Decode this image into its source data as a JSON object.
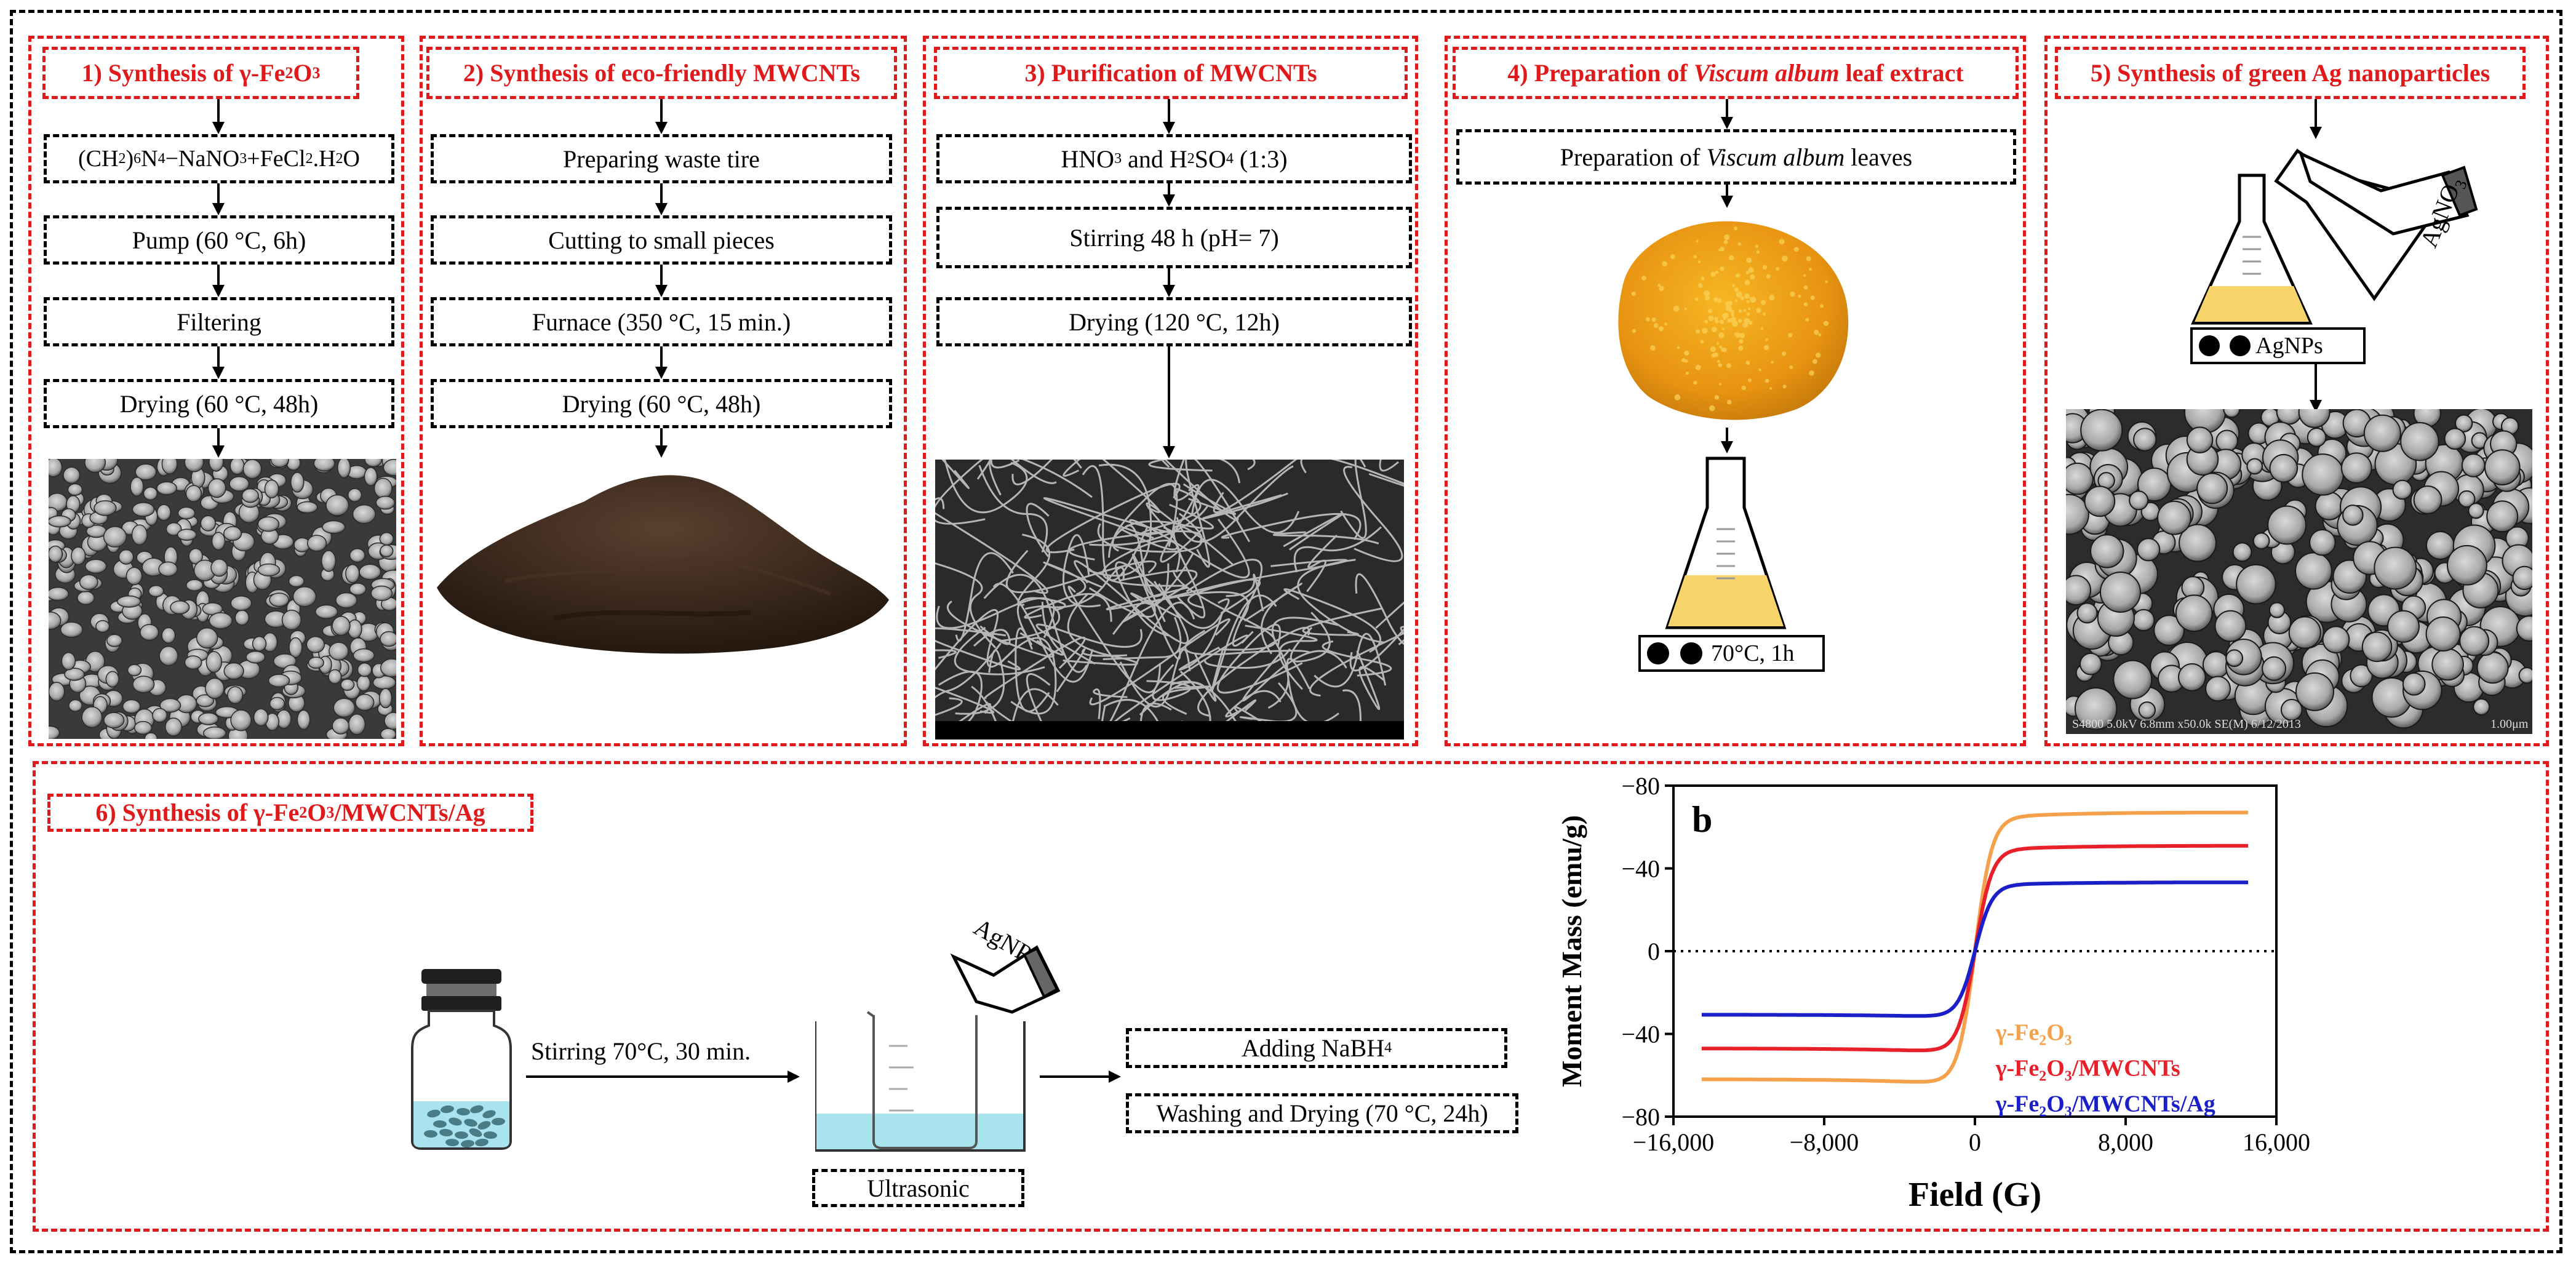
{
  "panel1": {
    "title_prefix": "1) Synthesis of γ-Fe",
    "title_sub1": "2",
    "title_mid": "O",
    "title_sub2": "3",
    "step1": {
      "p1": "(CH",
      "s1": "2",
      "p2": ")",
      "s2": "6",
      "p3": "N",
      "s3": "4",
      "p4": "−NaNO",
      "s4": "3",
      "p5": "+FeCl",
      "s5": "2",
      "p6": ".H",
      "s6": "2",
      "p7": "O"
    },
    "step2": "Pump (60 °C, 6h)",
    "step3": "Filtering",
    "step4": "Drying (60 °C, 48h)"
  },
  "panel2": {
    "title": "2) Synthesis of eco-friendly MWCNTs",
    "step1": "Preparing waste tire",
    "step2": "Cutting to small pieces",
    "step3": "Furnace (350 °C, 15 min.)",
    "step4": "Drying (60 °C, 48h)"
  },
  "panel3": {
    "title": "3) Purification of MWCNTs",
    "step1_a": "HNO",
    "step1_a_sub": "3",
    "step1_b": " and H",
    "step1_b_sub": "2",
    "step1_c": "SO",
    "step1_c_sub": "4",
    "step1_d": " (1:3)",
    "step2": "Stirring 48 h (pH= 7)",
    "step3": "Drying (120 °C, 12h)"
  },
  "panel4": {
    "title_a": "4) Preparation of ",
    "title_italic": "Viscum album",
    "title_b": " leaf extract",
    "step1_a": "Preparation of ",
    "step1_italic": "Viscum album",
    "step1_b": " leaves",
    "condition": "70°C, 1h"
  },
  "panel5": {
    "title": "5) Synthesis of green Ag nanoparticles",
    "reagent_a": "AgNO",
    "reagent_sub": "3",
    "product": "AgNPs",
    "sem_caption": "S4800 5.0kV 6.8mm x50.0k SE(M) 6/12/2013",
    "sem_scale": "1.00μm"
  },
  "panel6": {
    "title_a": "6) Synthesis of γ-Fe",
    "title_sub1": "2",
    "title_b": "O",
    "title_sub2": "3",
    "title_c": "/MWCNTs/Ag",
    "stirring": "Stirring 70°C, 30 min.",
    "reagent": "AgNPs",
    "ultrasonic": "Ultrasonic",
    "step1_a": "Adding NaBH",
    "step1_sub": "4",
    "step2": "Washing and Drying (70 °C, 24h)"
  },
  "colors": {
    "red": "#e01a1a",
    "orange": "#f5a04a",
    "series_red": "#e8202a",
    "series_blue": "#1a1fc8"
  },
  "chart_data": {
    "type": "line",
    "panel_label": "b",
    "xlabel": "Field (G)",
    "ylabel": "Moment Mass (emu/g)",
    "x_tick_labels": [
      "−16,000",
      "−8,000",
      "0",
      "8,000",
      "16,000"
    ],
    "y_tick_labels": [
      "−80",
      "−40",
      "0",
      "−40",
      "−80"
    ],
    "xlim": [
      -16000,
      16000
    ],
    "ylim": [
      -80,
      80
    ],
    "zero_line": "dotted",
    "series": [
      {
        "name": "γ-Fe2O3",
        "label_a": "γ-Fe",
        "label_sub1": "2",
        "label_b": "O",
        "label_sub2": "3",
        "label_c": "",
        "color": "#f5a04a",
        "ms": 64.5
      },
      {
        "name": "γ-Fe2O3/MWCNTs",
        "label_a": "γ-Fe",
        "label_sub1": "2",
        "label_b": "O",
        "label_sub2": "3",
        "label_c": "/MWCNTs",
        "color": "#e8202a",
        "ms": 49
      },
      {
        "name": "γ-Fe2O3/MWCNTs/Ag",
        "label_a": "γ-Fe",
        "label_sub1": "2",
        "label_b": "O",
        "label_sub2": "3",
        "label_c": "/MWCNTs/Ag",
        "color": "#1a1fc8",
        "ms": 32
      }
    ],
    "x_start": -14500,
    "x_end": 14500
  }
}
